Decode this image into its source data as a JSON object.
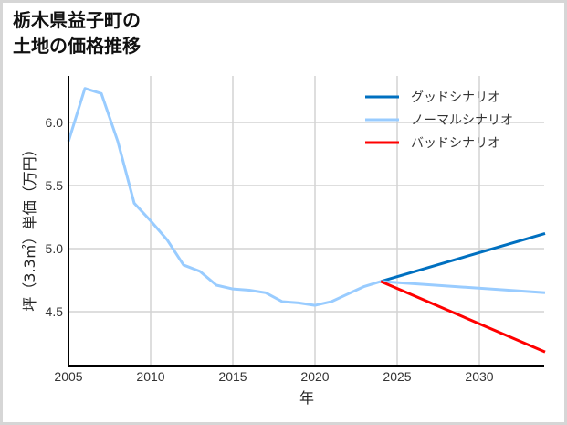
{
  "title_line1": "栃木県益子町の",
  "title_line2": "土地の価格推移",
  "chart_data": {
    "type": "line",
    "title": "栃木県益子町の土地の価格推移",
    "xlabel": "年",
    "ylabel": "坪（3.3㎡）単価（万円）",
    "xlim": [
      2005,
      2034
    ],
    "ylim": [
      4.2,
      6.35
    ],
    "x_ticks": [
      "2005",
      "2010",
      "2015",
      "2020",
      "2025",
      "2030"
    ],
    "y_ticks": [
      "4.5",
      "5.0",
      "5.5",
      "6.0"
    ],
    "grid": true,
    "legend_position": "upper right",
    "series": [
      {
        "name": "グッドシナリオ",
        "color": "#0070c0",
        "x": [
          2024,
          2034
        ],
        "values": [
          4.74,
          5.12
        ]
      },
      {
        "name": "ノーマルシナリオ",
        "color": "#99ccff",
        "x": [
          2005,
          2006,
          2007,
          2008,
          2009,
          2010,
          2011,
          2012,
          2013,
          2014,
          2015,
          2016,
          2017,
          2018,
          2019,
          2020,
          2021,
          2022,
          2023,
          2024,
          2034
        ],
        "values": [
          5.85,
          6.27,
          6.23,
          5.85,
          5.36,
          5.22,
          5.07,
          4.87,
          4.82,
          4.71,
          4.68,
          4.67,
          4.65,
          4.58,
          4.57,
          4.55,
          4.58,
          4.64,
          4.7,
          4.74,
          4.65
        ]
      },
      {
        "name": "バッドシナリオ",
        "color": "#ff0000",
        "x": [
          2024,
          2034
        ],
        "values": [
          4.74,
          4.18
        ]
      }
    ]
  }
}
